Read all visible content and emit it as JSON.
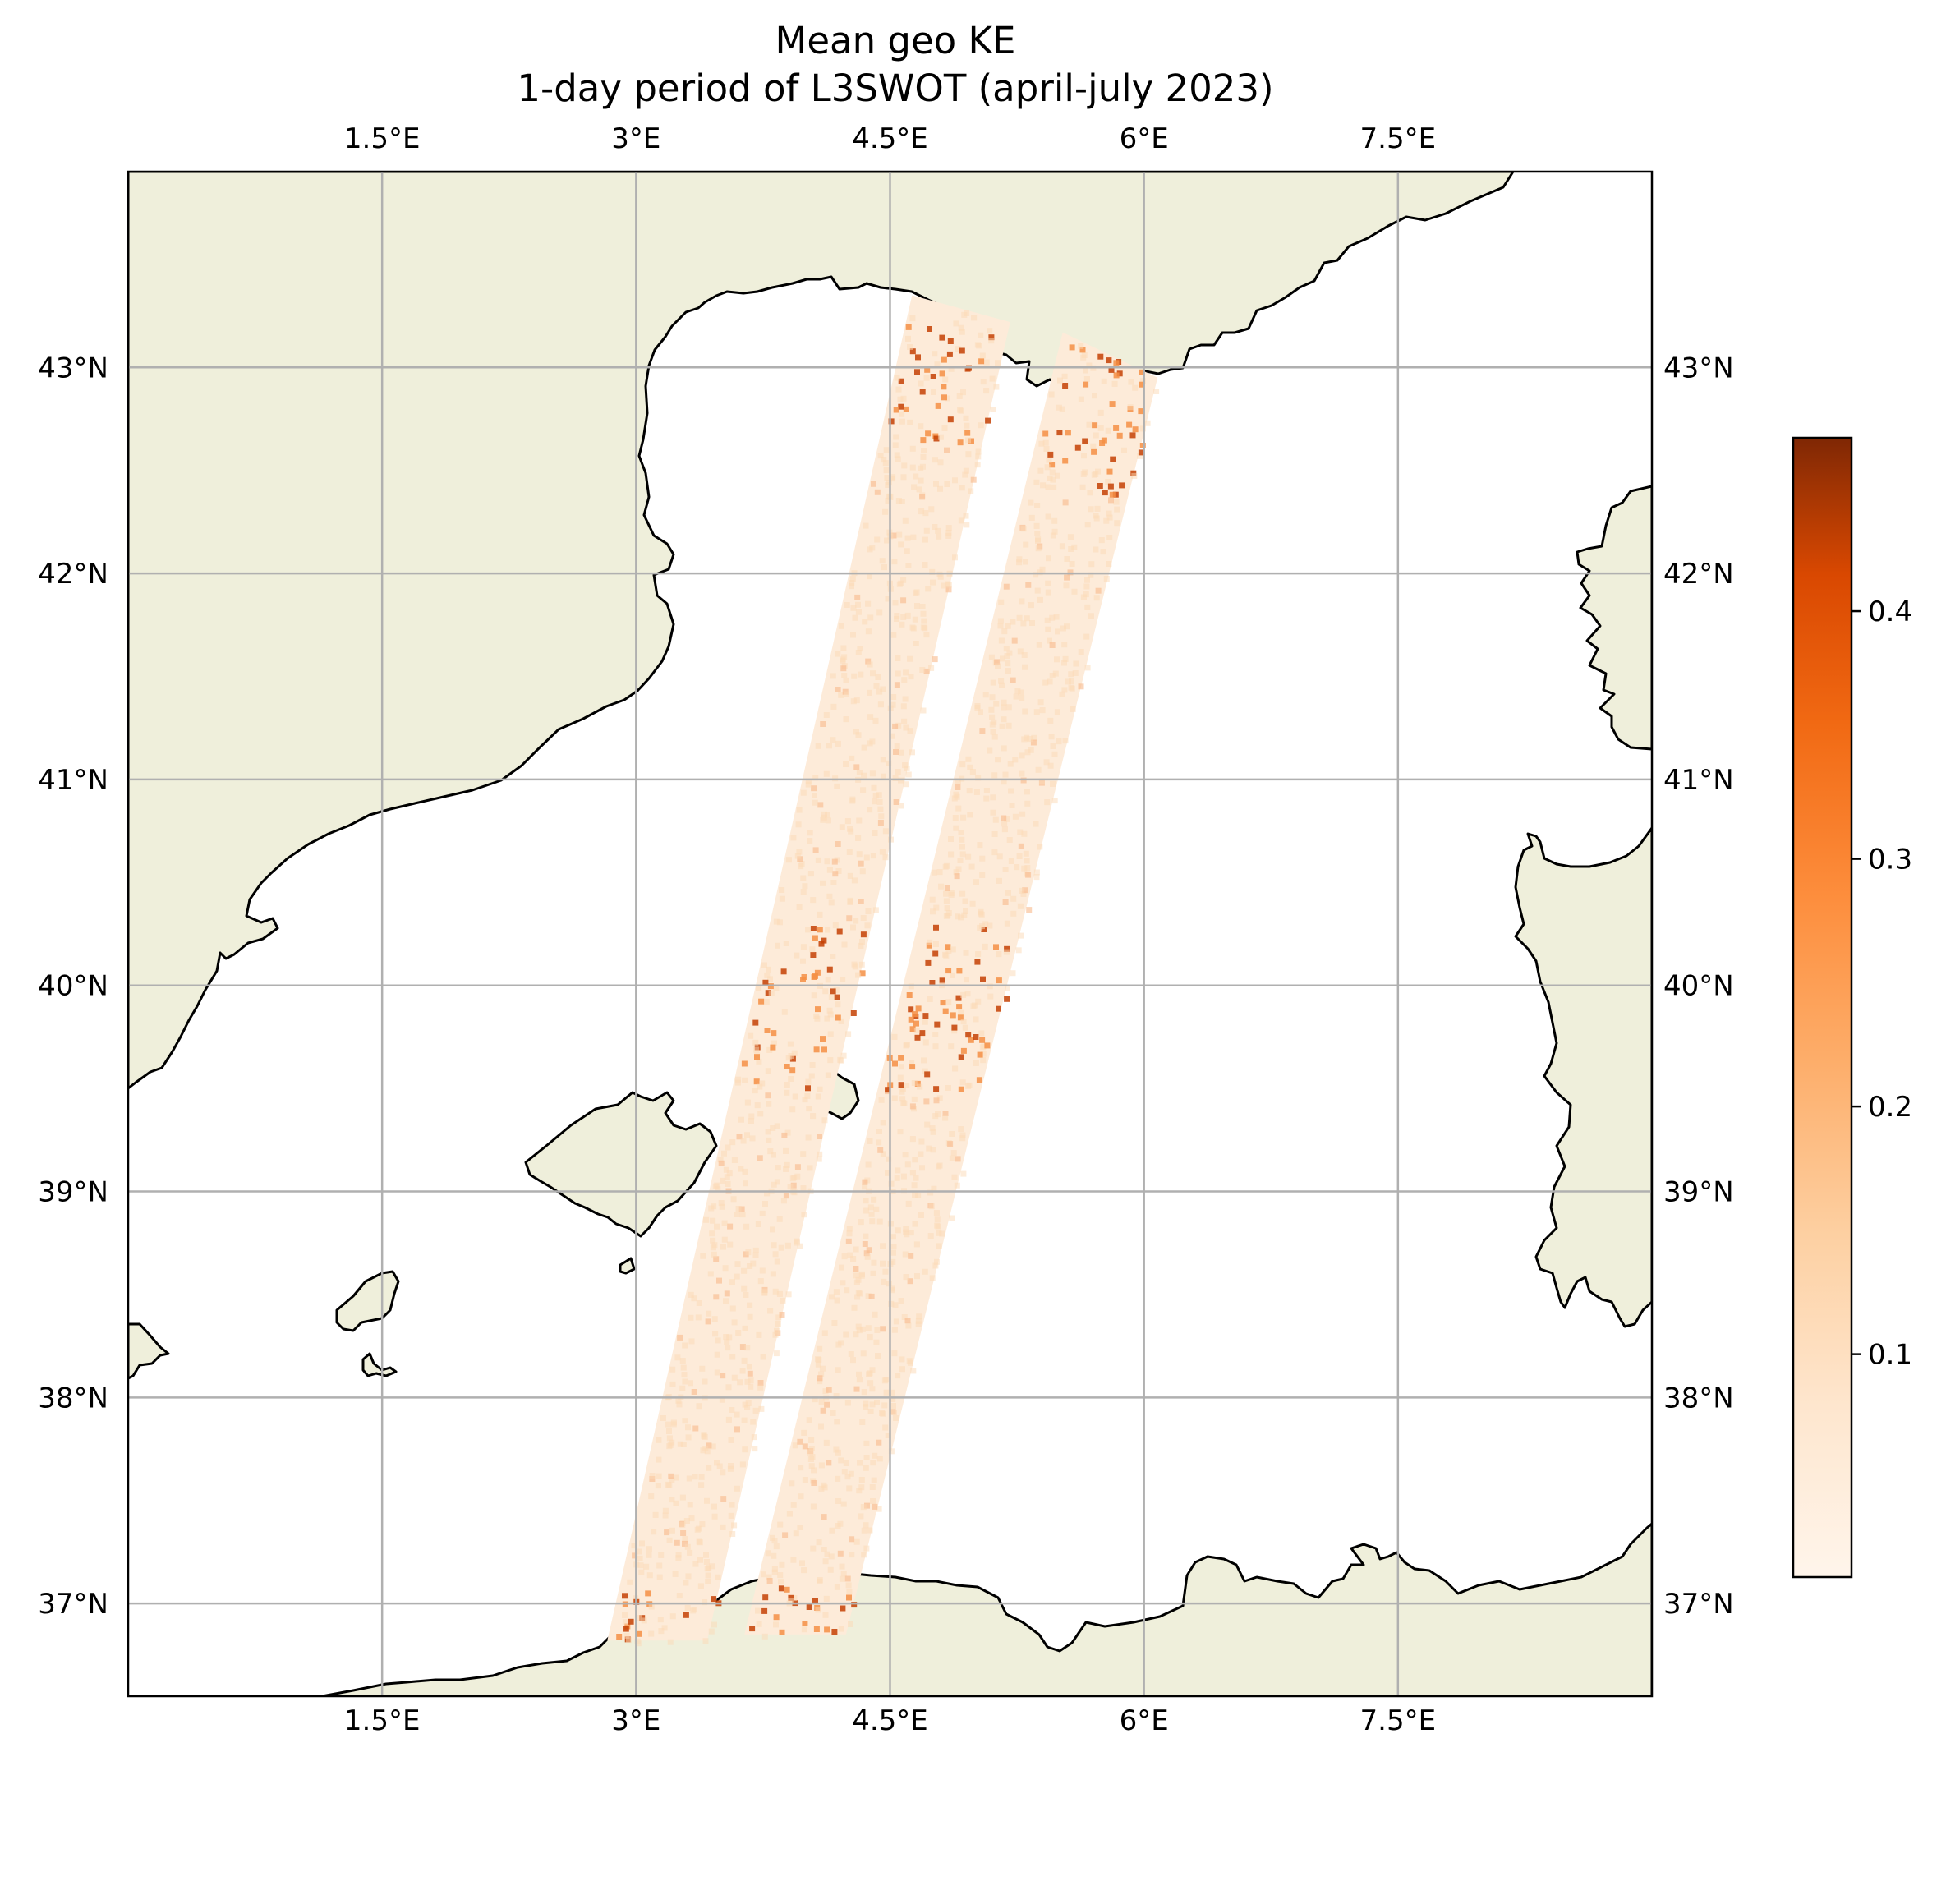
{
  "chart_data": {
    "type": "heatmap",
    "title": "Mean geo KE",
    "subtitle": "1-day period of L3SWOT (april-july 2023)",
    "xlim": [
      0.0,
      9.0
    ],
    "ylim": [
      36.55,
      43.95
    ],
    "grid": true,
    "x_ticks": [
      1.5,
      3.0,
      4.5,
      6.0,
      7.5
    ],
    "x_tick_labels": [
      "1.5°E",
      "3°E",
      "4.5°E",
      "6°E",
      "7.5°E"
    ],
    "y_ticks": [
      37,
      38,
      39,
      40,
      41,
      42,
      43
    ],
    "y_tick_labels": [
      "37°N",
      "38°N",
      "39°N",
      "40°N",
      "41°N",
      "42°N",
      "43°N"
    ],
    "colorbar": {
      "colormap": "Oranges",
      "range": [
        0.01,
        0.47
      ],
      "ticks": [
        0.1,
        0.2,
        0.3,
        0.4
      ],
      "tick_labels": [
        "0.1",
        "0.2",
        "0.3",
        "0.4"
      ]
    },
    "swaths": [
      {
        "corners": [
          [
            2.83,
            36.82
          ],
          [
            3.42,
            36.82
          ],
          [
            5.21,
            43.22
          ],
          [
            4.63,
            43.35
          ]
        ]
      },
      {
        "corners": [
          [
            3.64,
            36.85
          ],
          [
            4.24,
            36.85
          ],
          [
            6.08,
            42.95
          ],
          [
            5.52,
            43.17
          ]
        ]
      }
    ],
    "colors": {
      "land": "#efefdb",
      "ocean": "#ffffff",
      "grid": "#b0b0b0",
      "coast": "#000000",
      "swath_base": "#fdebd9",
      "swath_mid": "#f58f44",
      "swath_high": "#c44103"
    }
  }
}
